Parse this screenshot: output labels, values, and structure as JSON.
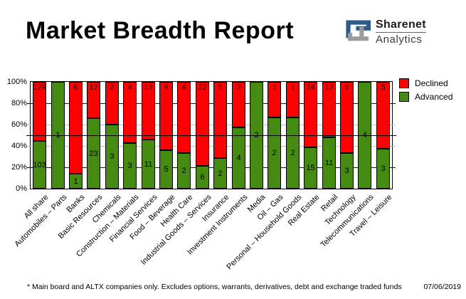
{
  "title": "Market Breadth Report",
  "logo": {
    "name": "Sharenet",
    "division": "Analytics"
  },
  "legend": {
    "items": [
      {
        "label": "Declined",
        "color": "#ff0000"
      },
      {
        "label": "Advanced",
        "color": "#458a11"
      }
    ]
  },
  "y_axis": {
    "tick_labels": [
      "0%",
      "20%",
      "40%",
      "60%",
      "80%",
      "100%"
    ]
  },
  "footnote": "* Main board and ALTX companies only. Excludes options, warrants, derivatives, debt and exchange traded funds",
  "report_date": "07/06/2019",
  "chart_data": {
    "type": "bar",
    "variant": "100%-stacked-column",
    "title": "Market Breadth Report",
    "categories": [
      "All share",
      "Automobiles – Parts",
      "Banks",
      "Basic Resources",
      "Chemicals",
      "Construction – Materials",
      "Financial Services",
      "Food – Beverage",
      "Health Care",
      "Industrial Goods – Services",
      "Insurance",
      "Investment Instruments",
      "Media",
      "Oil – Gas",
      "Personal – Household Goods",
      "Real Estate",
      "Retail",
      "Technology",
      "Telecommunications",
      "Travel – Leisure"
    ],
    "series": [
      {
        "name": "Declined",
        "color": "#ff0000",
        "values": [
          129,
          0,
          6,
          12,
          2,
          4,
          13,
          9,
          4,
          22,
          5,
          3,
          0,
          1,
          1,
          24,
          12,
          6,
          0,
          5
        ]
      },
      {
        "name": "Advanced",
        "color": "#458a11",
        "values": [
          103,
          1,
          1,
          23,
          3,
          3,
          11,
          5,
          2,
          6,
          2,
          4,
          2,
          2,
          2,
          15,
          11,
          3,
          4,
          3
        ]
      }
    ],
    "segment_labels_shown": true,
    "ylim": [
      0,
      100
    ],
    "y_ticks_percent": [
      0,
      20,
      40,
      60,
      80,
      100
    ],
    "gridlines": {
      "navy_levels_percent": [
        20,
        80
      ],
      "navy_color": "#000080",
      "gray_levels_percent": [
        40,
        60
      ],
      "gray_color": "#c0c0c0",
      "midline_percent": 50,
      "midline_color": "#000000"
    },
    "legend_position": "top-right"
  }
}
